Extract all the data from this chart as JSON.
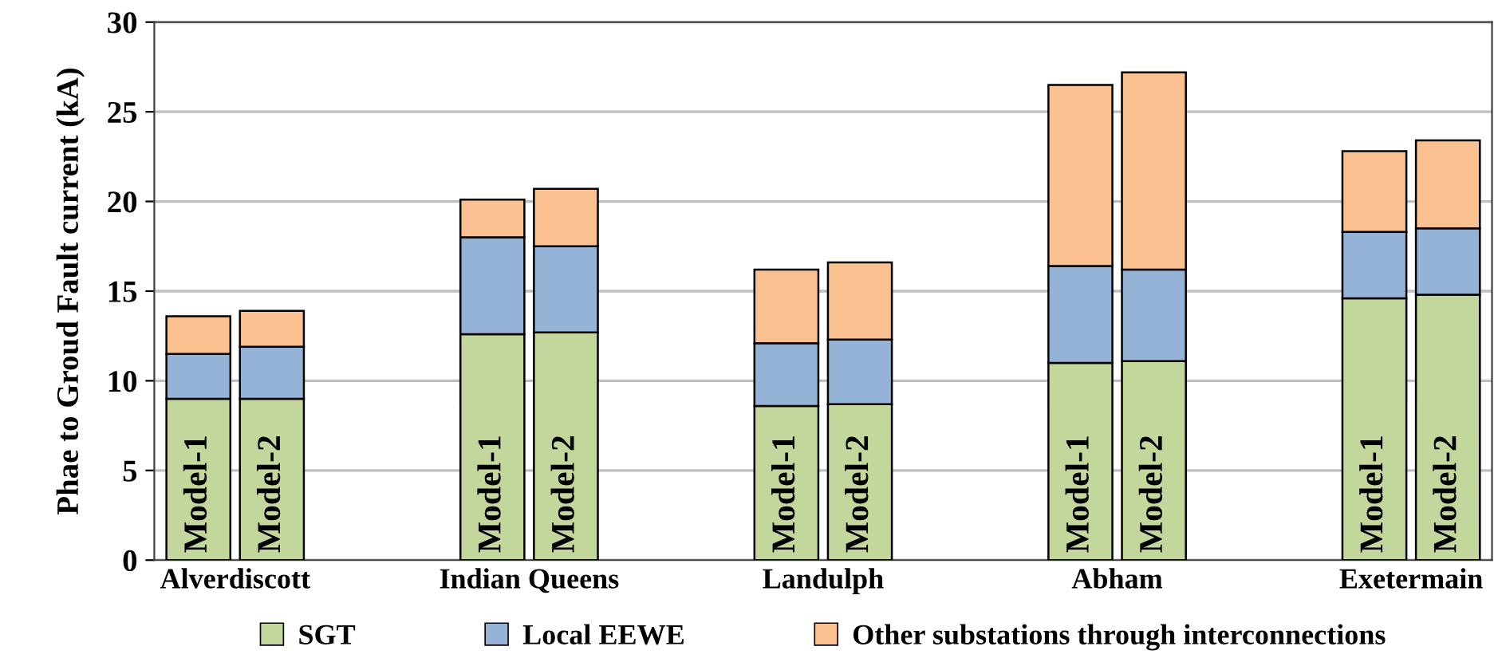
{
  "chart_data": {
    "type": "bar",
    "stacked": true,
    "ylabel": "Phae to Groud Fault current (kA)",
    "categories": [
      "Model-1",
      "Model-2",
      null,
      null,
      "Model-1",
      "Model-2",
      null,
      null,
      "Model-1",
      "Model-2",
      null,
      null,
      "Model-1",
      "Model-2",
      null,
      null,
      "Model-1",
      "Model-2"
    ],
    "series": [
      {
        "name": "SGT",
        "color": "#c3d69b",
        "values": [
          9.0,
          9.0,
          null,
          null,
          12.6,
          12.7,
          null,
          null,
          8.6,
          8.7,
          null,
          null,
          11.0,
          11.1,
          null,
          null,
          14.6,
          14.8
        ]
      },
      {
        "name": "Local EEWE",
        "color": "#95b3d7",
        "values": [
          2.5,
          2.9,
          null,
          null,
          5.4,
          4.8,
          null,
          null,
          3.5,
          3.6,
          null,
          null,
          5.4,
          5.1,
          null,
          null,
          3.7,
          3.7
        ]
      },
      {
        "name": "Other substations through interconnections",
        "color": "#fac090",
        "values": [
          2.1,
          2.0,
          null,
          null,
          2.1,
          3.2,
          null,
          null,
          4.1,
          4.3,
          null,
          null,
          10.1,
          11.0,
          null,
          null,
          4.5,
          4.9
        ]
      }
    ],
    "annotations": [
      "Alverdiscott",
      "Indian Queens",
      "Landulph",
      "Abham",
      "Exetermain"
    ],
    "ylim": [
      0,
      30
    ],
    "yticks": [
      0,
      5,
      10,
      15,
      20,
      25,
      30
    ],
    "grid": "y",
    "legend": "bottom"
  }
}
